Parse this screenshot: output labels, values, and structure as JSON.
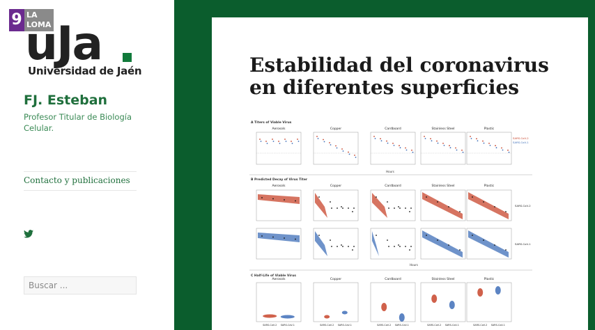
{
  "badge": {
    "number": "9",
    "text": "LA LOMA"
  },
  "logo": {
    "word": "uJa",
    "subtitle": "Universidad de Jaén"
  },
  "site": {
    "title": "FJ. Esteban",
    "description": "Profesor Titular de Biología Celular."
  },
  "nav": {
    "link": "Contacto y publicaciones"
  },
  "search": {
    "placeholder": "Buscar ..."
  },
  "post": {
    "title": "Estabilidad del coronavirus en diferentes superficies"
  },
  "figure": {
    "section_a": "A  Titers of Viable Virus",
    "section_b": "B  Predicted Decay of Virus Titer",
    "section_c": "C  Half-Life of Viable Virus",
    "panels": [
      "Aerosols",
      "Copper",
      "Cardboard",
      "Stainless Steel",
      "Plastic"
    ],
    "legend": [
      "SARS-CoV-2",
      "SARS-CoV-1"
    ],
    "row_labels": [
      "SARS-CoV-2",
      "SARS-CoV-1"
    ],
    "x_label": "Hours",
    "colors": {
      "cov2": "#c8452c",
      "cov1": "#3f6fb8"
    }
  }
}
